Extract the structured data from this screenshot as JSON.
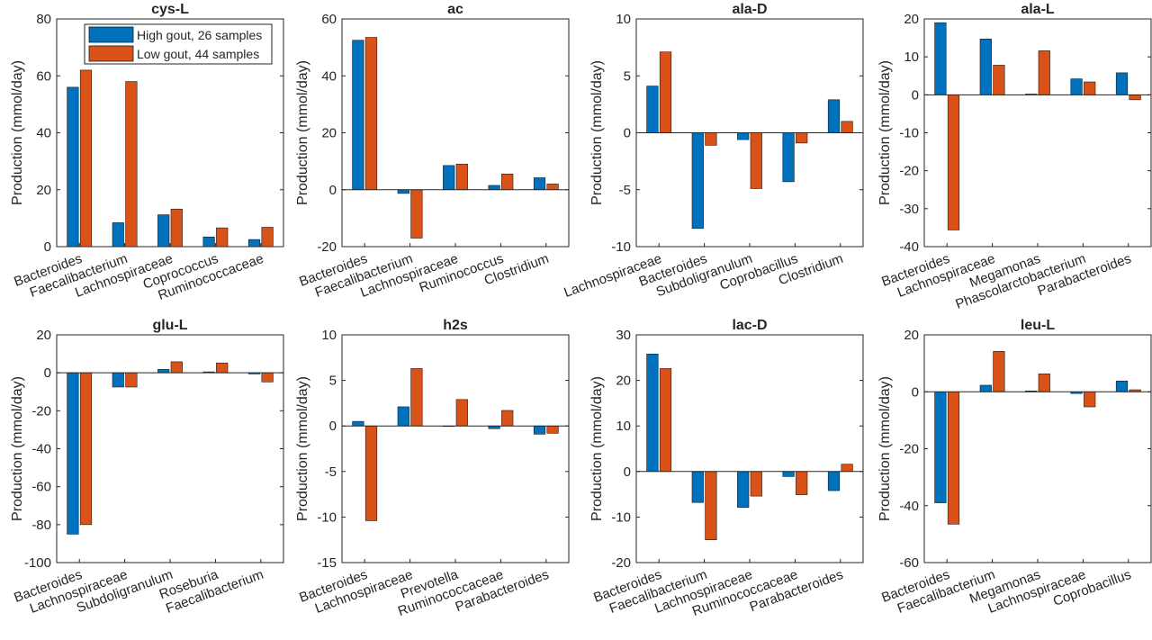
{
  "colors": {
    "high": "#0072BD",
    "low": "#D95319"
  },
  "legend": {
    "high_label": "High gout, 26 samples",
    "low_label": "Low gout, 44 samples",
    "location": "top-right of first panel"
  },
  "chart_data": [
    {
      "type": "bar",
      "title": "cys-L",
      "ylabel": "Production (mmol/day)",
      "ylim": [
        0,
        80
      ],
      "yticks": [
        0,
        20,
        40,
        60,
        80
      ],
      "categories": [
        "Bacteroides",
        "Faecalibacterium",
        "Lachnospiraceae",
        "Coprococcus",
        "Ruminococcaceae"
      ],
      "series": [
        {
          "name": "High gout, 26 samples",
          "values": [
            56,
            8.4,
            11.2,
            3.4,
            2.5
          ]
        },
        {
          "name": "Low gout, 44 samples",
          "values": [
            62,
            58,
            13.2,
            6.6,
            6.8
          ]
        }
      ]
    },
    {
      "type": "bar",
      "title": "ac",
      "ylabel": "Production (mmol/day)",
      "ylim": [
        -20,
        60
      ],
      "yticks": [
        -20,
        0,
        20,
        40,
        60
      ],
      "categories": [
        "Bacteroides",
        "Faecalibacterium",
        "Lachnospiraceae",
        "Ruminococcus",
        "Clostridium"
      ],
      "series": [
        {
          "name": "High gout, 26 samples",
          "values": [
            52.5,
            -1.3,
            8.5,
            1.5,
            4.2
          ]
        },
        {
          "name": "Low gout, 44 samples",
          "values": [
            53.5,
            -17,
            9,
            5.5,
            2
          ]
        }
      ]
    },
    {
      "type": "bar",
      "title": "ala-D",
      "ylabel": "Production (mmol/day)",
      "ylim": [
        -10,
        10
      ],
      "yticks": [
        -10,
        -5,
        0,
        5,
        10
      ],
      "categories": [
        "Lachnospiraceae",
        "Bacteroides",
        "Subdoligranulum",
        "Coprobacillus",
        "Clostridium"
      ],
      "series": [
        {
          "name": "High gout, 26 samples",
          "values": [
            4.1,
            -8.4,
            -0.6,
            -4.3,
            2.9
          ]
        },
        {
          "name": "Low gout, 44 samples",
          "values": [
            7.1,
            -1.1,
            -4.9,
            -0.9,
            1
          ]
        }
      ]
    },
    {
      "type": "bar",
      "title": "ala-L",
      "ylabel": "Production (mmol/day)",
      "ylim": [
        -40,
        20
      ],
      "yticks": [
        -40,
        -30,
        -20,
        -10,
        0,
        10,
        20
      ],
      "categories": [
        "Bacteroides",
        "Lachnospiraceae",
        "Megamonas",
        "Phascolarctobacterium",
        "Parabacteroides"
      ],
      "series": [
        {
          "name": "High gout, 26 samples",
          "values": [
            19,
            14.7,
            0.2,
            4.2,
            5.8
          ]
        },
        {
          "name": "Low gout, 44 samples",
          "values": [
            -35.6,
            7.8,
            11.6,
            3.4,
            -1.3
          ]
        }
      ]
    },
    {
      "type": "bar",
      "title": "glu-L",
      "ylabel": "Production (mmol/day)",
      "ylim": [
        -100,
        20
      ],
      "yticks": [
        -100,
        -80,
        -60,
        -40,
        -20,
        0,
        20
      ],
      "categories": [
        "Bacteroides",
        "Lachnospiraceae",
        "Subdoligranulum",
        "Roseburia",
        "Faecalibacterium"
      ],
      "series": [
        {
          "name": "High gout, 26 samples",
          "values": [
            -85,
            -7.5,
            1.8,
            0.5,
            -0.6
          ]
        },
        {
          "name": "Low gout, 44 samples",
          "values": [
            -80,
            -7.5,
            5.8,
            5.2,
            -4.8
          ]
        }
      ]
    },
    {
      "type": "bar",
      "title": "h2s",
      "ylabel": "Production (mmol/day)",
      "ylim": [
        -15,
        10
      ],
      "yticks": [
        -15,
        -10,
        -5,
        0,
        5,
        10
      ],
      "categories": [
        "Bacteroides",
        "Lachnospiraceae",
        "Prevotella",
        "Ruminococcaceae",
        "Parabacteroides"
      ],
      "series": [
        {
          "name": "High gout, 26 samples",
          "values": [
            0.5,
            2.1,
            0,
            -0.3,
            -0.9
          ]
        },
        {
          "name": "Low gout, 44 samples",
          "values": [
            -10.4,
            6.3,
            2.9,
            1.7,
            -0.8
          ]
        }
      ]
    },
    {
      "type": "bar",
      "title": "lac-D",
      "ylabel": "Production (mmol/day)",
      "ylim": [
        -20,
        30
      ],
      "yticks": [
        -20,
        -10,
        0,
        10,
        20,
        30
      ],
      "categories": [
        "Bacteroides",
        "Faecalibacterium",
        "Lachnospiraceae",
        "Ruminococcaceae",
        "Parabacteroides"
      ],
      "series": [
        {
          "name": "High gout, 26 samples",
          "values": [
            25.8,
            -6.8,
            -7.9,
            -1.1,
            -4.2
          ]
        },
        {
          "name": "Low gout, 44 samples",
          "values": [
            22.6,
            -15,
            -5.4,
            -5.1,
            1.6
          ]
        }
      ]
    },
    {
      "type": "bar",
      "title": "leu-L",
      "ylabel": "Production (mmol/day)",
      "ylim": [
        -60,
        20
      ],
      "yticks": [
        -60,
        -40,
        -20,
        0,
        20
      ],
      "categories": [
        "Bacteroides",
        "Faecalibacterium",
        "Megamonas",
        "Lachnospiraceae",
        "Coprobacillus"
      ],
      "series": [
        {
          "name": "High gout, 26 samples",
          "values": [
            -39,
            2.3,
            0.3,
            -0.6,
            3.8
          ]
        },
        {
          "name": "Low gout, 44 samples",
          "values": [
            -46.5,
            14.2,
            6.3,
            -5.3,
            0.7
          ]
        }
      ]
    }
  ]
}
